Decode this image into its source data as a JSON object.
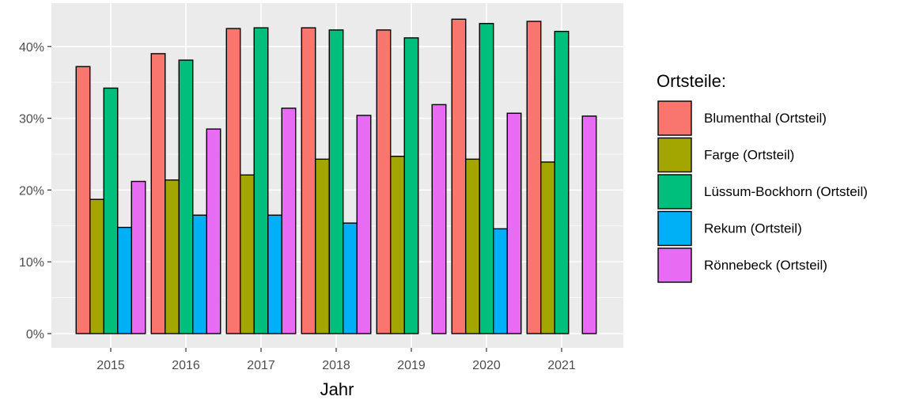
{
  "chart_data": {
    "type": "bar",
    "title": "",
    "xlabel": "Jahr",
    "ylabel": "",
    "categories": [
      "2015",
      "2016",
      "2017",
      "2018",
      "2019",
      "2020",
      "2021"
    ],
    "y_ticks": [
      "0%",
      "10%",
      "20%",
      "30%",
      "40%"
    ],
    "ylim": [
      0,
      0.45
    ],
    "y_format": "percent",
    "grid": true,
    "panel_background": "#ebebeb",
    "legend": {
      "title": "Ortsteile:",
      "position": "right"
    },
    "series": [
      {
        "name": "Blumenthal (Ortsteil)",
        "color": "#f8766d",
        "values": [
          0.372,
          0.39,
          0.425,
          0.426,
          0.423,
          0.438,
          0.435
        ]
      },
      {
        "name": "Farge (Ortsteil)",
        "color": "#a3a500",
        "values": [
          0.187,
          0.214,
          0.221,
          0.243,
          0.247,
          0.243,
          0.239
        ]
      },
      {
        "name": "Lüssum-Bockhorn (Ortsteil)",
        "color": "#00bf7d",
        "values": [
          0.342,
          0.381,
          0.426,
          0.423,
          0.412,
          0.432,
          0.421
        ]
      },
      {
        "name": "Rekum (Ortsteil)",
        "color": "#00b0f6",
        "values": [
          0.148,
          0.165,
          0.165,
          0.154,
          null,
          0.146,
          null
        ]
      },
      {
        "name": "Rönnebeck (Ortsteil)",
        "color": "#e76bf3",
        "values": [
          0.212,
          0.285,
          0.314,
          0.304,
          0.319,
          0.307,
          0.303
        ]
      }
    ]
  }
}
